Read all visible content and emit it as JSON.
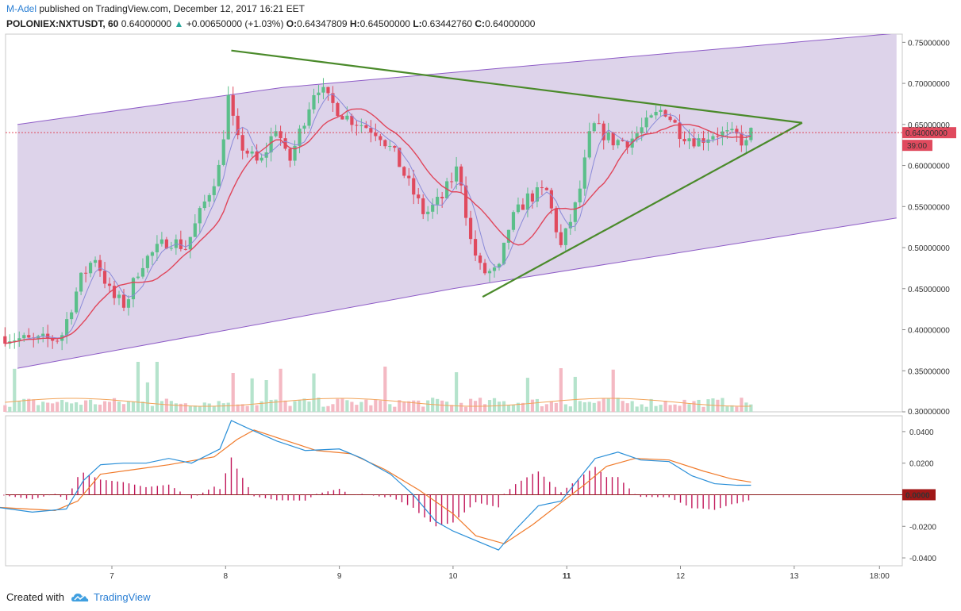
{
  "header": {
    "author": "M-Adel",
    "published": " published on TradingView.com, December 12, 2017 16:21 EET",
    "symbol": "POLONIEX:NXTUSDT, 60",
    "last": "0.64000000",
    "change_arrow": "▲",
    "change": "+0.00650000 (+1.03%)",
    "o_label": "O:",
    "o": "0.64347809",
    "h_label": "H:",
    "h": "0.64500000",
    "l_label": "L:",
    "l": "0.63442760",
    "c_label": "C:",
    "c": "0.64000000"
  },
  "footer": {
    "created_with": "Created with",
    "brand": "TradingView"
  },
  "colors": {
    "up": "#5bbf8a",
    "down": "#e04a5e",
    "channel_fill": "#d7cbe6",
    "channel_line": "#8e5cc7",
    "triangle": "#4a8a2a",
    "ma_fast": "#8a8ad8",
    "ma_slow": "#e0455a",
    "macd": "#2a8fd8",
    "signal": "#f07a2a",
    "hist": "#c2185b",
    "price_tag": "#e04a5e",
    "zero_tag": "#a01818"
  },
  "chart_data": [
    {
      "type": "candlestick",
      "title": "POLONIEX:NXTUSDT, 60",
      "x_ticks": [
        "7",
        "8",
        "9",
        "10",
        "11",
        "12",
        "13",
        "18:00"
      ],
      "y_ticks": [
        "0.75000000",
        "0.70000000",
        "0.65000000",
        "0.60000000",
        "0.55000000",
        "0.50000000",
        "0.45000000",
        "0.40000000",
        "0.35000000",
        "0.30000000"
      ],
      "ylim": [
        0.3,
        0.76
      ],
      "last_price_label": "0.64000000",
      "countdown_label": "39:00",
      "price_path": [
        [
          6.06,
          0.392
        ],
        [
          6.3,
          0.386
        ],
        [
          6.55,
          0.39
        ],
        [
          6.72,
          0.46
        ],
        [
          6.85,
          0.49
        ],
        [
          7.0,
          0.44
        ],
        [
          7.12,
          0.43
        ],
        [
          7.25,
          0.48
        ],
        [
          7.5,
          0.51
        ],
        [
          7.65,
          0.5
        ],
        [
          7.8,
          0.55
        ],
        [
          7.95,
          0.6
        ],
        [
          8.02,
          0.685
        ],
        [
          8.1,
          0.63
        ],
        [
          8.3,
          0.6
        ],
        [
          8.45,
          0.65
        ],
        [
          8.55,
          0.6
        ],
        [
          8.65,
          0.64
        ],
        [
          8.8,
          0.7
        ],
        [
          8.9,
          0.68
        ],
        [
          9.05,
          0.66
        ],
        [
          9.2,
          0.65
        ],
        [
          9.35,
          0.64
        ],
        [
          9.5,
          0.61
        ],
        [
          9.6,
          0.58
        ],
        [
          9.75,
          0.54
        ],
        [
          9.9,
          0.56
        ],
        [
          10.05,
          0.6
        ],
        [
          10.15,
          0.51
        ],
        [
          10.25,
          0.47
        ],
        [
          10.4,
          0.47
        ],
        [
          10.5,
          0.53
        ],
        [
          10.65,
          0.56
        ],
        [
          10.82,
          0.57
        ],
        [
          10.95,
          0.5
        ],
        [
          11.1,
          0.56
        ],
        [
          11.22,
          0.65
        ],
        [
          11.4,
          0.63
        ],
        [
          11.55,
          0.63
        ],
        [
          11.7,
          0.65
        ],
        [
          11.85,
          0.67
        ],
        [
          12.0,
          0.64
        ],
        [
          12.15,
          0.63
        ],
        [
          12.3,
          0.64
        ],
        [
          12.5,
          0.635
        ],
        [
          12.58,
          0.625
        ],
        [
          12.62,
          0.64
        ]
      ],
      "channel": {
        "upper": [
          [
            6.17,
            0.65
          ],
          [
            8.5,
            0.695
          ],
          [
            13.9,
            0.761
          ]
        ],
        "lower": [
          [
            6.17,
            0.353
          ],
          [
            10.0,
            0.45
          ],
          [
            13.9,
            0.536
          ]
        ]
      },
      "triangle": {
        "top": [
          [
            8.05,
            0.74
          ],
          [
            13.07,
            0.652
          ]
        ],
        "bottom": [
          [
            10.26,
            0.44
          ],
          [
            13.07,
            0.652
          ]
        ]
      },
      "series": [
        {
          "name": "Price"
        },
        {
          "name": "Volume"
        }
      ]
    },
    {
      "type": "line",
      "title": "MACD",
      "y_ticks": [
        "0.0400",
        "0.0200",
        "0.0000",
        "-0.0200",
        "-0.0400"
      ],
      "ylim": [
        -0.045,
        0.05
      ],
      "zero_label": "0.0000",
      "macd": [
        [
          6.0,
          -0.008
        ],
        [
          6.3,
          -0.011
        ],
        [
          6.6,
          -0.009
        ],
        [
          6.75,
          0.009
        ],
        [
          6.9,
          0.019
        ],
        [
          7.1,
          0.02
        ],
        [
          7.3,
          0.02
        ],
        [
          7.5,
          0.023
        ],
        [
          7.7,
          0.02
        ],
        [
          7.95,
          0.029
        ],
        [
          8.05,
          0.047
        ],
        [
          8.2,
          0.042
        ],
        [
          8.45,
          0.034
        ],
        [
          8.7,
          0.028
        ],
        [
          9.0,
          0.029
        ],
        [
          9.2,
          0.023
        ],
        [
          9.45,
          0.013
        ],
        [
          9.65,
          0.0
        ],
        [
          9.85,
          -0.017
        ],
        [
          10.0,
          -0.023
        ],
        [
          10.2,
          -0.029
        ],
        [
          10.4,
          -0.035
        ],
        [
          10.55,
          -0.022
        ],
        [
          10.75,
          -0.007
        ],
        [
          10.95,
          -0.004
        ],
        [
          11.05,
          0.005
        ],
        [
          11.25,
          0.023
        ],
        [
          11.45,
          0.027
        ],
        [
          11.65,
          0.022
        ],
        [
          11.9,
          0.021
        ],
        [
          12.1,
          0.012
        ],
        [
          12.3,
          0.007
        ],
        [
          12.5,
          0.006
        ],
        [
          12.62,
          0.006
        ]
      ],
      "signal": [
        [
          6.0,
          -0.008
        ],
        [
          6.5,
          -0.01
        ],
        [
          6.7,
          -0.004
        ],
        [
          6.9,
          0.013
        ],
        [
          7.2,
          0.016
        ],
        [
          7.5,
          0.019
        ],
        [
          7.9,
          0.024
        ],
        [
          8.1,
          0.035
        ],
        [
          8.25,
          0.041
        ],
        [
          8.5,
          0.035
        ],
        [
          8.8,
          0.028
        ],
        [
          9.1,
          0.026
        ],
        [
          9.4,
          0.016
        ],
        [
          9.7,
          0.003
        ],
        [
          10.0,
          -0.012
        ],
        [
          10.2,
          -0.026
        ],
        [
          10.45,
          -0.031
        ],
        [
          10.7,
          -0.019
        ],
        [
          10.95,
          -0.005
        ],
        [
          11.15,
          0.006
        ],
        [
          11.35,
          0.018
        ],
        [
          11.6,
          0.023
        ],
        [
          11.9,
          0.022
        ],
        [
          12.2,
          0.015
        ],
        [
          12.45,
          0.01
        ],
        [
          12.62,
          0.008
        ]
      ]
    }
  ]
}
